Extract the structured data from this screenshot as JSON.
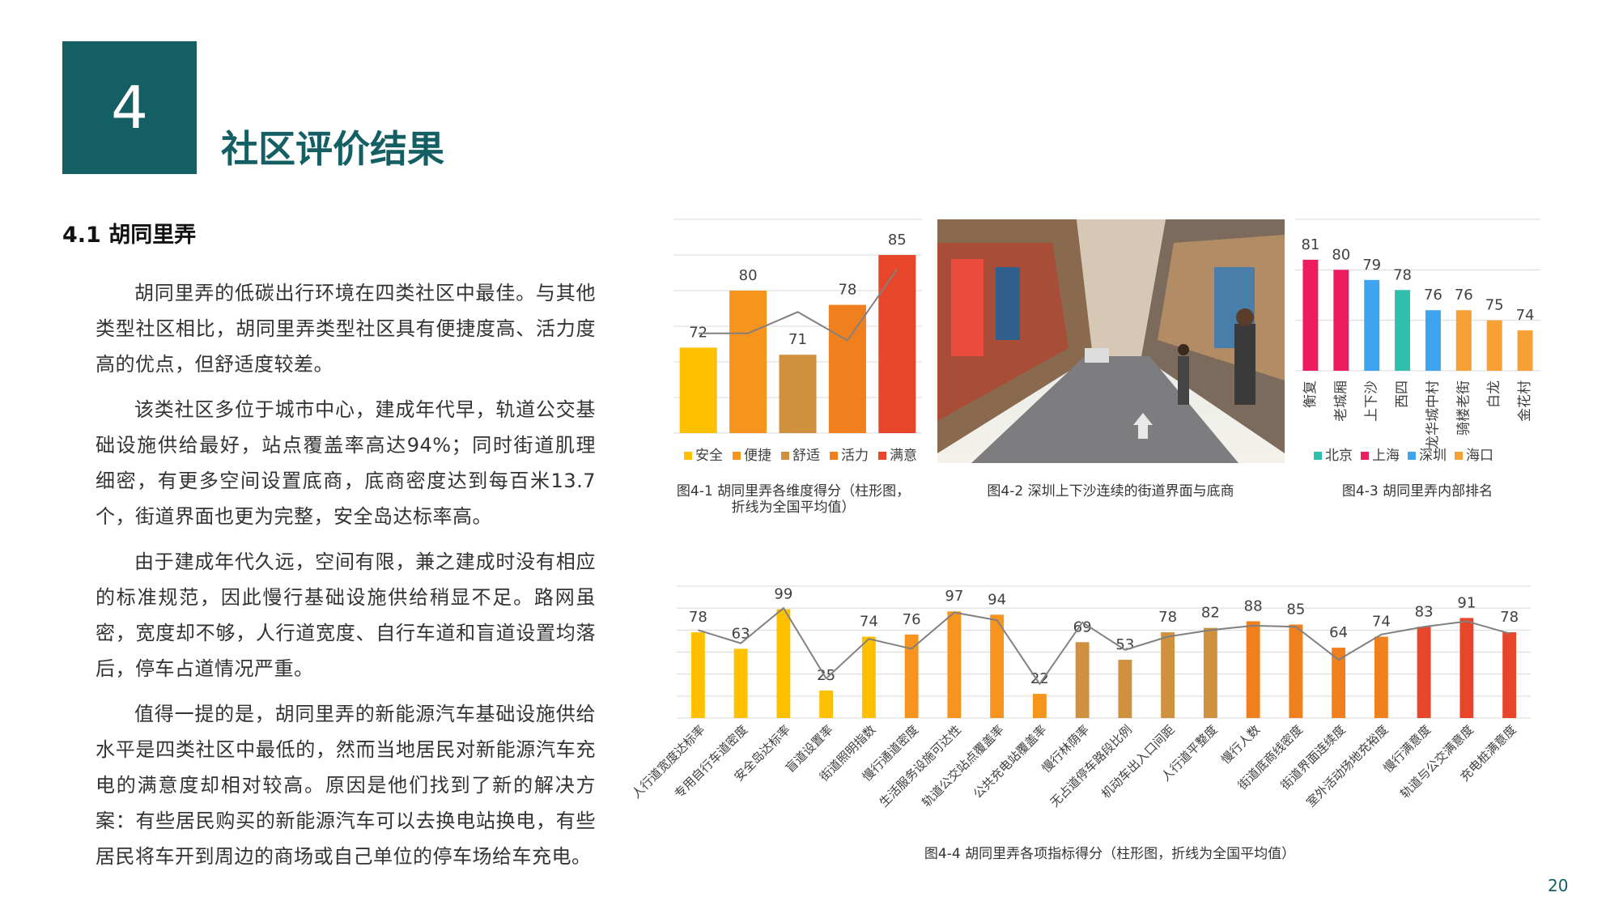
{
  "header": {
    "number": "4",
    "title": "社区评价结果"
  },
  "section": {
    "title": "4.1 胡同里弄",
    "paragraphs": [
      "胡同里弄的低碳出行环境在四类社区中最佳。与其他类型社区相比，胡同里弄类型社区具有便捷度高、活力度高的优点，但舒适度较差。",
      "该类社区多位于城市中心，建成年代早，轨道公交基础设施供给最好，站点覆盖率高达94%；同时街道肌理细密，有更多空间设置底商，底商密度达到每百米13.7个，街道界面也更为完整，安全岛达标率高。",
      "由于建成年代久远，空间有限，兼之建成时没有相应的标准规范，因此慢行基础设施供给稍显不足。路网虽密，宽度却不够，人行道宽度、自行车道和盲道设置均落后，停车占道情况严重。",
      "值得一提的是，胡同里弄的新能源汽车基础设施供给水平是四类社区中最低的，然而当地居民对新能源汽车充电的满意度却相对较高。原因是他们找到了新的解决方案：有些居民购买的新能源汽车可以去换电站换电，有些居民将车开到周边的商场或自己单位的停车场给车充电。"
    ]
  },
  "photo": {
    "caption": "图4-2 深圳上下沙连续的街道界面与底商"
  },
  "chart_data": [
    {
      "type": "bar",
      "caption": [
        "图4-1 胡同里弄各维度得分（柱形图，",
        "折线为全国平均值）"
      ],
      "categories": [
        "安全",
        "便捷",
        "舒适",
        "活力",
        "满意"
      ],
      "values": [
        72,
        80,
        71,
        78,
        85
      ],
      "colors": [
        "#FFC000",
        "#F7941D",
        "#D0913E",
        "#F07F1E",
        "#E8462A"
      ],
      "line": {
        "color": "#808080",
        "values": [
          74,
          74,
          77,
          73,
          83
        ]
      },
      "ylim": [
        60,
        90
      ],
      "yticks": [
        60,
        65,
        70,
        75,
        80,
        85,
        90
      ],
      "grid": true,
      "legend": "bottom"
    },
    {
      "type": "bar",
      "caption": [
        "图4-3 胡同里弄内部排名"
      ],
      "categories": [
        "衡复",
        "老城厢",
        "上下沙",
        "西四",
        "龙华城中村",
        "骑楼老街",
        "白龙",
        "金花村"
      ],
      "series": [
        {
          "name": "北京",
          "color": "#2EBFAE",
          "values": [
            null,
            null,
            null,
            78,
            null,
            null,
            null,
            null
          ]
        },
        {
          "name": "上海",
          "color": "#EC1C5E",
          "values": [
            81,
            80,
            null,
            null,
            null,
            null,
            null,
            null
          ]
        },
        {
          "name": "深圳",
          "color": "#3FA4F0",
          "values": [
            null,
            null,
            79,
            null,
            76,
            null,
            null,
            null
          ]
        },
        {
          "name": "海口",
          "color": "#F7A034",
          "values": [
            null,
            null,
            null,
            null,
            null,
            76,
            75,
            74
          ]
        }
      ],
      "ylim": [
        70,
        85
      ],
      "yticks": [
        70,
        75,
        80,
        85
      ],
      "grid": true,
      "legend": "bottom",
      "label_rotation": -90
    },
    {
      "type": "bar",
      "caption": [
        "图4-4 胡同里弄各项指标得分（柱形图，折线为全国平均值）"
      ],
      "categories": [
        "人行道宽度达标率",
        "专用自行车道密度",
        "安全岛达标率",
        "盲道设置率",
        "街道照明指数",
        "慢行通道密度",
        "生活服务设施可达性",
        "轨道公交站点覆盖率",
        "公共充电站覆盖率",
        "慢行林荫率",
        "无占道停车路段比例",
        "机动车出入口间距",
        "人行道平整度",
        "慢行人数",
        "街道底商线密度",
        "街道界面连续度",
        "室外活动场地充裕度",
        "慢行满意度",
        "轨道与公交满意度",
        "充电桩满意度"
      ],
      "values": [
        78,
        63,
        99,
        25,
        74,
        76,
        97,
        94,
        22,
        69,
        53,
        78,
        82,
        88,
        85,
        64,
        74,
        83,
        91,
        78
      ],
      "colors": [
        "#FFC000",
        "#FFC000",
        "#FFC000",
        "#FFC000",
        "#FFC000",
        "#F7941D",
        "#F7941D",
        "#F7941D",
        "#F7941D",
        "#D0913E",
        "#D0913E",
        "#D0913E",
        "#D0913E",
        "#F07F1E",
        "#F07F1E",
        "#F07F1E",
        "#F07F1E",
        "#E8462A",
        "#E8462A",
        "#E8462A"
      ],
      "line": {
        "color": "#808080",
        "values": [
          80,
          68,
          100,
          36,
          72,
          63,
          96,
          89,
          31,
          87,
          62,
          74,
          80,
          84,
          83,
          53,
          76,
          83,
          88,
          77
        ]
      },
      "ylim": [
        0,
        120
      ],
      "yticks": [
        0,
        20,
        40,
        60,
        80,
        100,
        120
      ],
      "grid": true,
      "label_rotation": -45
    }
  ],
  "page_number": "20"
}
